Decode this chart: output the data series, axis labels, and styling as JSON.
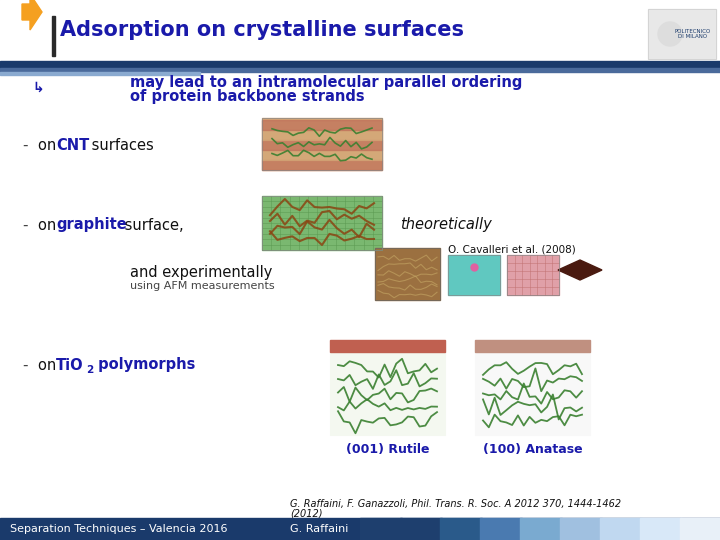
{
  "title": "Adsorption on crystalline surfaces",
  "title_color": "#1a1aaa",
  "bg_color": "#f0f0f0",
  "header_bg": "#ffffff",
  "arrow_color": "#f5a020",
  "subtitle_line1": "may lead to an intramolecular parallel ordering",
  "subtitle_line2": "of protein backbone strands",
  "subtitle_color": "#1a1aaa",
  "text_color": "#111111",
  "bold_color": "#1a1aaa",
  "italic_text": "theoretically",
  "line3a": "and experimentally",
  "line3b": "using AFM measurements",
  "cavalleri": "O. Cavalleri et al. (2008)",
  "caption_rutile": "(001) Rutile",
  "caption_anatase": "(100) Anatase",
  "footer_left": "Separation Techniques – Valencia 2016",
  "footer_center": "G. Raffaini",
  "footer_ref1": "G. Raffaini, F. Ganazzoli, Phil. Trans. R. Soc. A 2012 370, 1444-1462",
  "footer_ref2": "(2012)",
  "header_dark": "#1a3a6b",
  "header_mid": "#4a6a9b",
  "header_light": "#8aaad0",
  "footer_colors": [
    "#1e3f6e",
    "#1e3f6e",
    "#2a5a8a",
    "#4a7ab0",
    "#7aaad0",
    "#a0c0e0",
    "#c0d8f0",
    "#d8e8f8",
    "#e8f0f8"
  ],
  "dash_color": "#444444"
}
